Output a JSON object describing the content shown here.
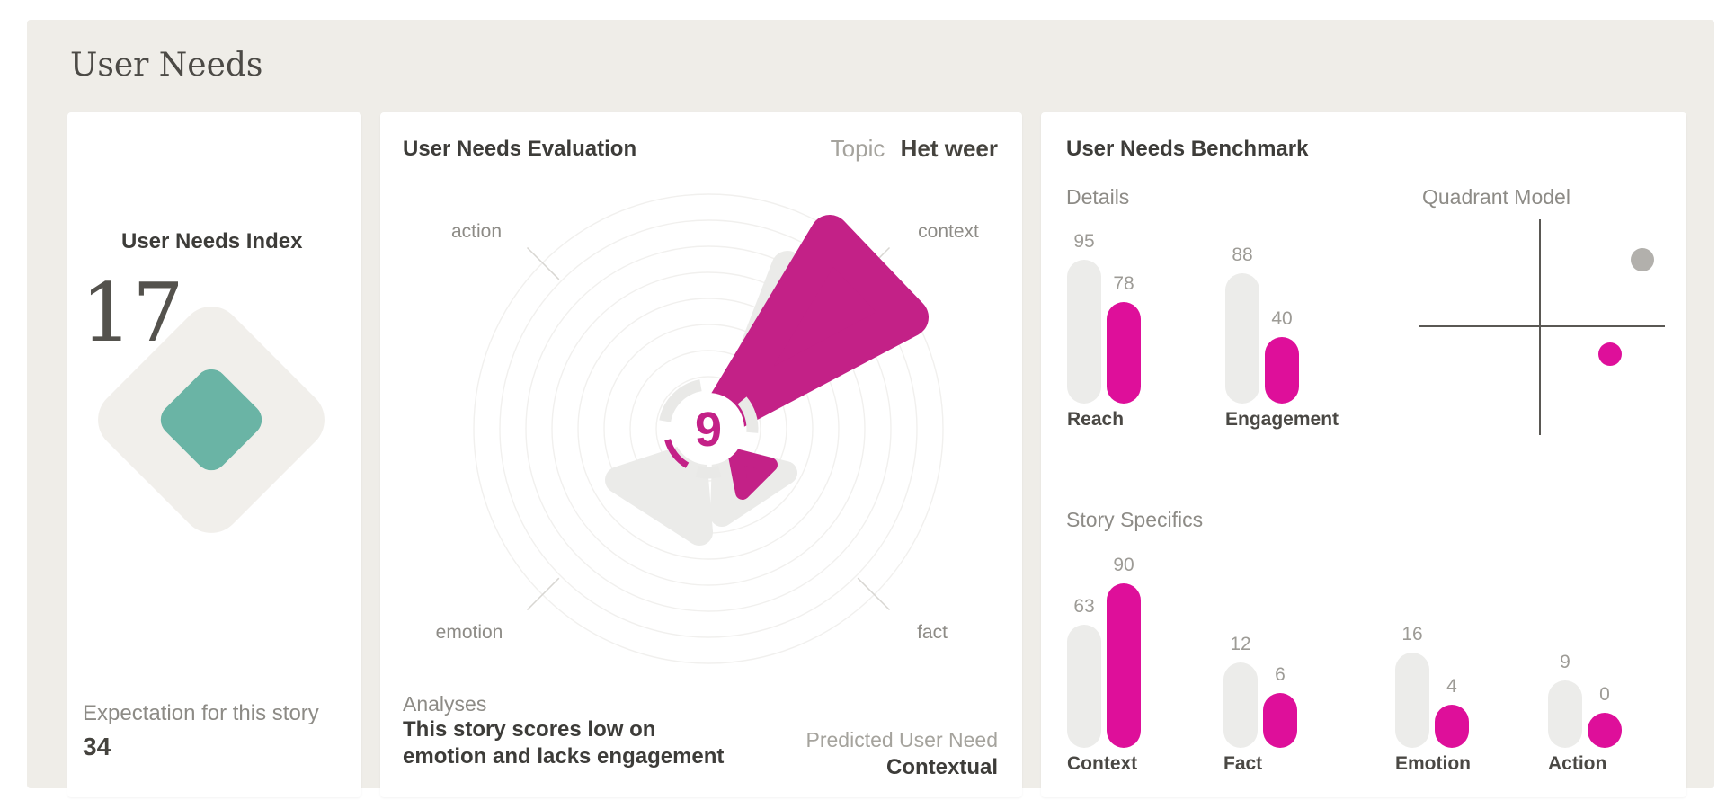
{
  "page": {
    "title": "User Needs"
  },
  "index_card": {
    "title": "User Needs Index",
    "index_value": "17",
    "expectation_label": "Expectation for this story",
    "expectation_value": "34"
  },
  "evaluation_card": {
    "title": "User Needs Evaluation",
    "topic_label": "Topic",
    "topic_value": "Het weer",
    "score": "9",
    "axis_labels": {
      "nw": "action",
      "ne": "context",
      "sw": "emotion",
      "se": "fact"
    },
    "analyses_label": "Analyses",
    "analyses_text_line1": "This story scores low on",
    "analyses_text_line2": "emotion and lacks engagement",
    "predicted_label": "Predicted User Need",
    "predicted_value": "Contextual"
  },
  "benchmark_card": {
    "title": "User Needs Benchmark",
    "details_title": "Details",
    "quadrant_title": "Quadrant Model",
    "story_title": "Story Specifics"
  },
  "colors": {
    "magenta": "#de0f9a",
    "magenta_dark": "#c32187",
    "teal": "#6ab4a5",
    "benchmark_gray": "#ececea",
    "dot_gray": "#b2b0ac",
    "background_beige": "#efede8"
  },
  "chart_data": [
    {
      "type": "bar",
      "title": "Details",
      "categories": [
        "Reach",
        "Engagement"
      ],
      "series": [
        {
          "name": "benchmark",
          "color": "#ececea",
          "values": [
            95,
            88
          ]
        },
        {
          "name": "story",
          "color": "#de0f9a",
          "values": [
            78,
            40
          ]
        }
      ],
      "value_labels": true,
      "ylim": [
        0,
        100
      ],
      "grid": false
    },
    {
      "type": "scatter",
      "title": "Quadrant Model",
      "points": [
        {
          "name": "benchmark",
          "color": "#b2b0ac",
          "quadrant": "upper-right"
        },
        {
          "name": "story",
          "color": "#de0f9a",
          "quadrant": "lower-right"
        }
      ],
      "axes": "unlabeled quadrant cross"
    },
    {
      "type": "bar",
      "title": "Story Specifics",
      "categories": [
        "Context",
        "Fact",
        "Emotion",
        "Action"
      ],
      "series": [
        {
          "name": "benchmark",
          "color": "#ececea",
          "values": [
            63,
            12,
            16,
            9
          ]
        },
        {
          "name": "story",
          "color": "#de0f9a",
          "values": [
            90,
            6,
            4,
            0
          ]
        }
      ],
      "value_labels": true,
      "ylim": [
        0,
        100
      ],
      "grid": false
    },
    {
      "type": "polar",
      "title": "User Needs Evaluation",
      "axes": [
        "action",
        "context",
        "emotion",
        "fact"
      ],
      "center_score": 9,
      "highlighted_axis": "context",
      "predicted_user_need": "Contextual"
    }
  ]
}
